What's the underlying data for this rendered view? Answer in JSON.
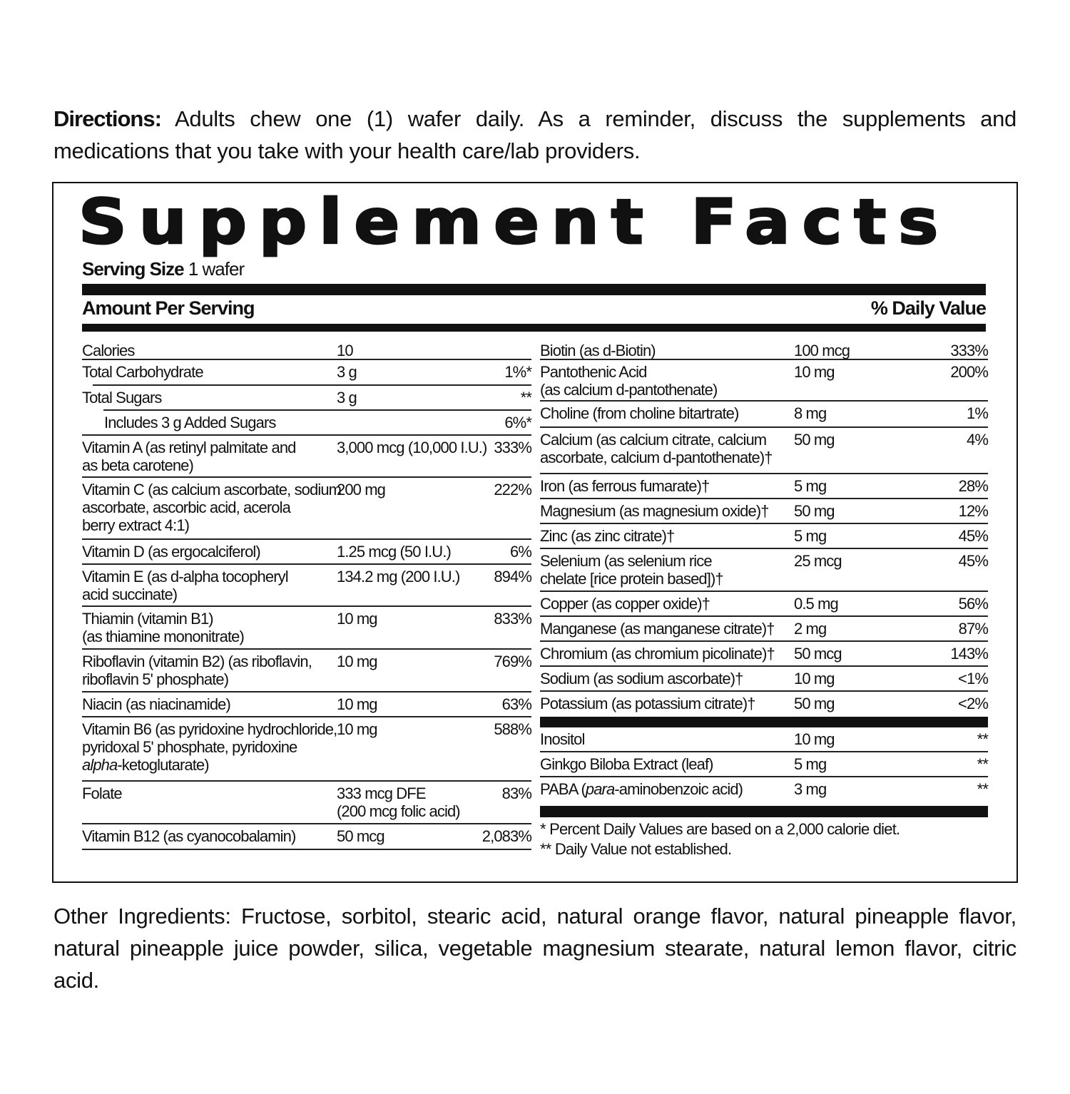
{
  "directions": {
    "label": "Directions:",
    "text": " Adults chew one (1) wafer daily. As a reminder, discuss the supplements and medications that you take with your health care/lab providers."
  },
  "title": "Supplement Facts",
  "serving": {
    "label": "Serving Size",
    "value": " 1 wafer"
  },
  "header": {
    "amount": "Amount Per Serving",
    "dv": "% Daily Value"
  },
  "left_rows": [
    {
      "name": "Calories",
      "amount": "10",
      "dv": ""
    },
    {
      "name": "Total Carbohydrate",
      "amount": "3 g",
      "dv": "1%*"
    },
    {
      "name": "Total Sugars",
      "amount": "3 g",
      "dv": "**"
    },
    {
      "name": "Includes 3 g  Added Sugars",
      "amount": "",
      "dv": "6%*"
    },
    {
      "name": "Vitamin A (as  retinyl palmitate and\nas beta carotene)",
      "amount": "3,000 mcg (10,000 I.U.)",
      "dv": "333%"
    },
    {
      "name": "Vitamin C (as calcium ascorbate, sodium\nascorbate, ascorbic acid, acerola\nberry extract 4:1)",
      "amount": "200 mg",
      "dv": "222%"
    },
    {
      "name": "Vitamin D (as ergocalciferol)",
      "amount": "1.25 mcg (50 I.U.)",
      "dv": "6%"
    },
    {
      "name": "Vitamin E (as d-alpha tocopheryl\nacid succinate)",
      "amount": "134.2 mg (200 I.U.)",
      "dv": "894%"
    },
    {
      "name": "Thiamin (vitamin B1)\n(as thiamine mononitrate)",
      "amount": "10 mg",
      "dv": "833%"
    },
    {
      "name": "Riboflavin (vitamin B2) (as riboflavin,\nriboflavin 5' phosphate)",
      "amount": "10 mg",
      "dv": "769%"
    },
    {
      "name": "Niacin (as niacinamide)",
      "amount": "10 mg",
      "dv": "63%"
    },
    {
      "name": "Vitamin B6 (as pyridoxine hydrochloride,\npyridoxal 5' phosphate, pyridoxine\n",
      "name_italic": "alpha",
      "name_post": "-ketoglutarate)",
      "amount": "10 mg",
      "dv": "588%"
    },
    {
      "name": "Folate",
      "amount": "333 mcg DFE\n(200 mcg folic acid)",
      "dv": "83%"
    },
    {
      "name": "Vitamin B12 (as cyanocobalamin)",
      "amount": "50 mcg",
      "dv": "2,083%"
    }
  ],
  "right_rows": [
    {
      "name": "Biotin (as d-Biotin)",
      "amount": "100 mcg",
      "dv": "333%"
    },
    {
      "name": "Pantothenic Acid\n(as calcium d-pantothenate)",
      "amount": "10 mg",
      "dv": "200%"
    },
    {
      "name": "Choline (from choline bitartrate)",
      "amount": "8 mg",
      "dv": "1%"
    },
    {
      "name": "Calcium (as calcium citrate, calcium\nascorbate, calcium d-pantothenate)†",
      "amount": "50 mg",
      "dv": "4%"
    },
    {
      "name": "Iron (as ferrous fumarate)†",
      "amount": "5 mg",
      "dv": "28%"
    },
    {
      "name": "Magnesium (as magnesium oxide)†",
      "amount": "50 mg",
      "dv": "12%"
    },
    {
      "name": "Zinc (as zinc citrate)†",
      "amount": "5 mg",
      "dv": "45%"
    },
    {
      "name": "Selenium (as selenium rice\nchelate [rice protein based])†",
      "amount": "25 mcg",
      "dv": "45%"
    },
    {
      "name": "Copper (as copper oxide)†",
      "amount": "0.5 mg",
      "dv": "56%"
    },
    {
      "name": "Manganese (as manganese citrate)†",
      "amount": "2 mg",
      "dv": "87%"
    },
    {
      "name": "Chromium (as chromium picolinate)†",
      "amount": "50 mcg",
      "dv": "143%"
    },
    {
      "name": "Sodium (as sodium ascorbate)†",
      "amount": "10 mg",
      "dv": "<1%"
    },
    {
      "name": "Potassium (as potassium citrate)†",
      "amount": "50 mg",
      "dv": "<2%"
    },
    {
      "name": "Inositol",
      "amount": "10 mg",
      "dv": "**"
    },
    {
      "name": "Ginkgo Biloba Extract (leaf)",
      "amount": " 5 mg",
      "dv": "**"
    },
    {
      "name": "PABA (",
      "name_italic": "para",
      "name_post": "-aminobenzoic acid)",
      "amount": " 3 mg",
      "dv": "**"
    }
  ],
  "footnotes": [
    "* Percent Daily Values are based on a 2,000 calorie diet.",
    "** Daily Value not established."
  ],
  "other_ingredients": "Other Ingredients: Fructose, sorbitol, stearic acid, natural orange flavor, natural pineapple flavor, natural pineapple juice powder, silica, vegetable magnesium stearate, natural lemon flavor, citric acid."
}
